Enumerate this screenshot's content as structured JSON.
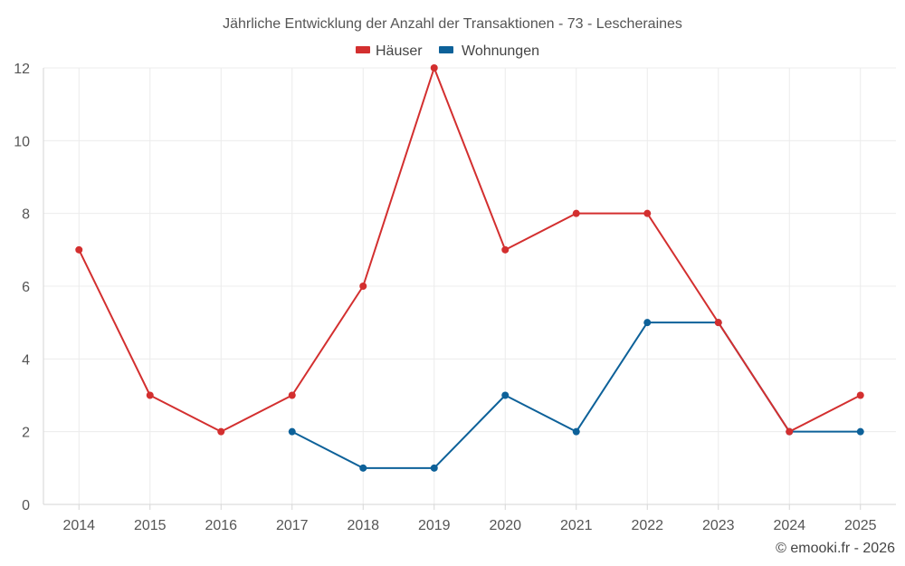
{
  "chart_data": {
    "type": "line",
    "title": "Jährliche Entwicklung der Anzahl der Transaktionen - 73 - Lescheraines",
    "categories": [
      "2014",
      "2015",
      "2016",
      "2017",
      "2018",
      "2019",
      "2020",
      "2021",
      "2022",
      "2023",
      "2024",
      "2025"
    ],
    "ylim": [
      0,
      12
    ],
    "yticks": [
      "0",
      "2",
      "4",
      "6",
      "8",
      "10",
      "12"
    ],
    "grid": true,
    "legend_position": "top-center",
    "series": [
      {
        "name": "Häuser",
        "color": "#d32f2f",
        "values": [
          7,
          3,
          2,
          3,
          6,
          12,
          7,
          8,
          8,
          5,
          2,
          3
        ]
      },
      {
        "name": "Wohnungen",
        "color": "#0d6199",
        "values": [
          null,
          null,
          null,
          2,
          1,
          1,
          3,
          2,
          5,
          5,
          2,
          2
        ]
      }
    ],
    "credit": "© emooki.fr - 2026"
  }
}
